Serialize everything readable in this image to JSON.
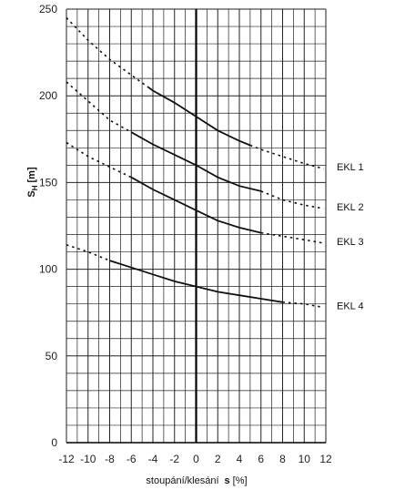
{
  "chart_data": {
    "type": "line",
    "xlabel_prefix": "stoupání/klesání",
    "xlabel_symbol": "s",
    "xlabel_unit": "[%]",
    "ylabel_main": "S",
    "ylabel_sub": "H",
    "ylabel_unit": "[m]",
    "xlim": [
      -12,
      12
    ],
    "ylim": [
      0,
      250
    ],
    "xticks": [
      -12,
      -10,
      -8,
      -6,
      -4,
      -2,
      0,
      2,
      4,
      6,
      8,
      10,
      12
    ],
    "yticks": [
      0,
      50,
      100,
      150,
      200,
      250
    ],
    "grid": true,
    "colors": {
      "line": "#111111",
      "grid": "#222222"
    },
    "series": [
      {
        "name": "EKL 1",
        "solid_range": [
          -4.5,
          5
        ],
        "x": [
          -12,
          -10,
          -8,
          -6,
          -4,
          -2,
          0,
          2,
          4,
          6,
          8,
          10,
          11.8
        ],
        "y": [
          245,
          232,
          221,
          212,
          203,
          196,
          188,
          180,
          174,
          169,
          165,
          161,
          158
        ]
      },
      {
        "name": "EKL 2",
        "solid_range": [
          -6,
          6
        ],
        "x": [
          -12,
          -10,
          -8,
          -6,
          -4,
          -2,
          0,
          2,
          4,
          6,
          8,
          10,
          11.8
        ],
        "y": [
          208,
          197,
          186,
          179,
          172,
          166,
          160,
          153,
          148,
          145,
          140,
          137,
          135
        ]
      },
      {
        "name": "EKL 3",
        "solid_range": [
          -6,
          6
        ],
        "x": [
          -12,
          -10,
          -8,
          -6,
          -4,
          -2,
          0,
          2,
          4,
          6,
          8,
          10,
          11.8
        ],
        "y": [
          173,
          165,
          159,
          153,
          146,
          140,
          134,
          128,
          124,
          121,
          119,
          117,
          115
        ]
      },
      {
        "name": "EKL 4",
        "solid_range": [
          -8,
          8
        ],
        "x": [
          -12,
          -10,
          -8,
          -6,
          -4,
          -2,
          0,
          2,
          4,
          6,
          8,
          10,
          11.8
        ],
        "y": [
          114,
          110,
          105,
          101,
          97,
          93,
          90,
          87,
          85,
          83,
          81,
          80,
          78
        ]
      }
    ]
  }
}
